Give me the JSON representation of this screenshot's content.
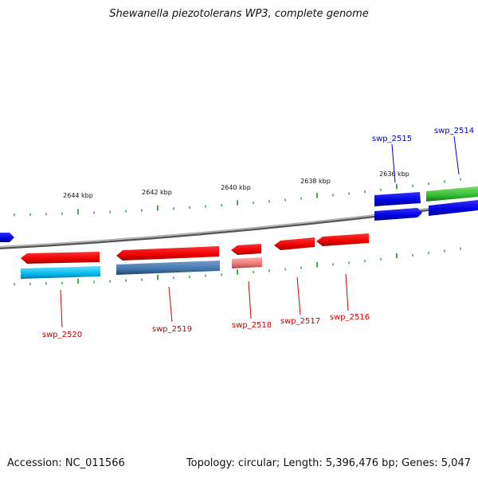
{
  "title": "Shewanella piezotolerans WP3, complete genome",
  "footer": {
    "accession": "Accession: NC_011566",
    "summary": "Topology: circular; Length: 5,396,476 bp; Genes: 5,047"
  },
  "scale_labels": [
    "2644 kbp",
    "2642 kbp",
    "2640 kbp",
    "2638 kbp",
    "2636 kbp"
  ],
  "gene_labels_top": [
    "swp_2515",
    "swp_2514"
  ],
  "gene_labels_bottom": [
    "swp_2520",
    "swp_2519",
    "swp_2518",
    "swp_2517",
    "swp_2516"
  ],
  "colors": {
    "forward_cds": "#0000ee",
    "reverse_cds": "#ee0000",
    "forward_label": "#0000cc",
    "reverse_label": "#cc0000",
    "green_feature": "#33bb33",
    "cyan_feature": "#00bbee",
    "steel_feature": "#4477aa",
    "pink_feature": "#ee7777",
    "backbone": "#888888",
    "ticks": "#119911"
  }
}
